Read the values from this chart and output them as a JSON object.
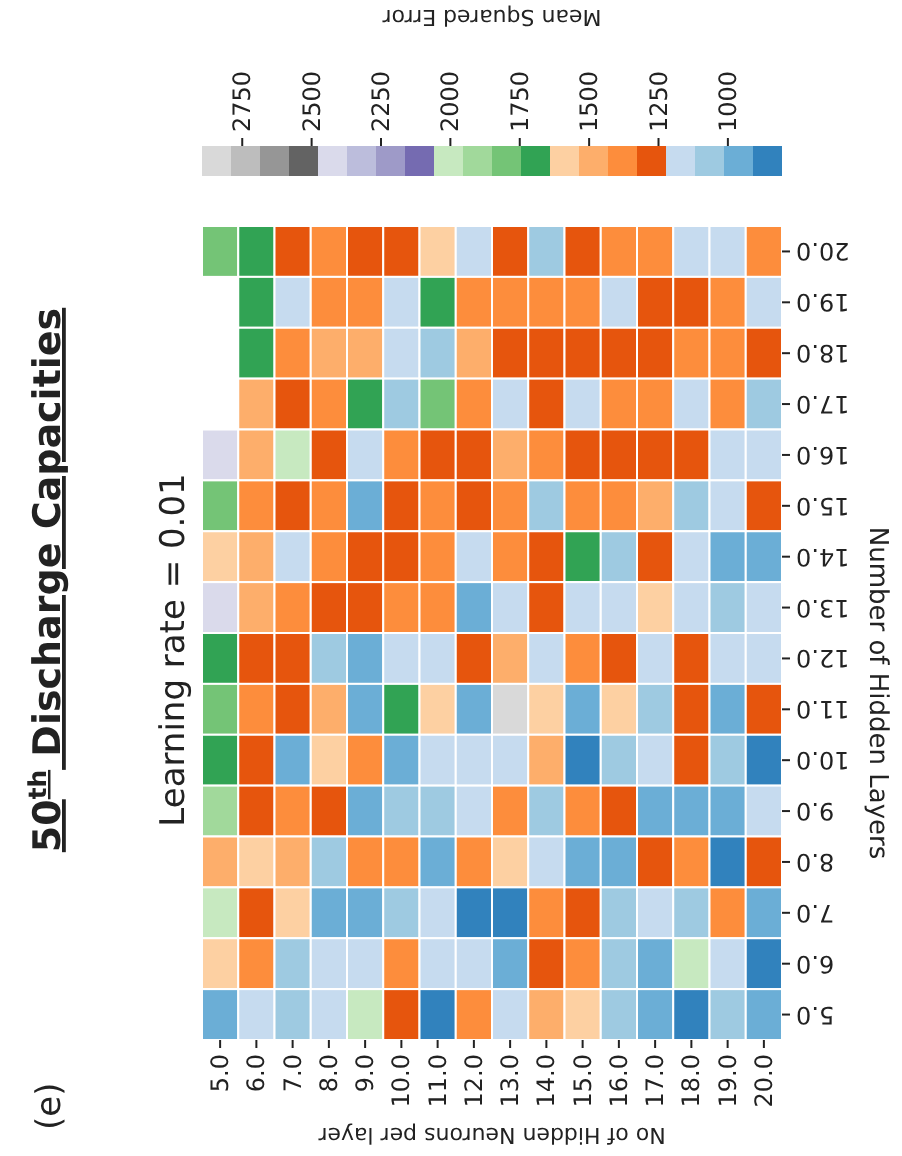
{
  "chart_data": {
    "type": "heatmap",
    "title": "50$^{th}$ Discharge Capacities",
    "subtitle": "Learning rate = 0.01",
    "xlabel": "No of Hidden Neurons per layer",
    "ylabel": "Number of Hidden Layers",
    "clabel": "Mean Squared Error",
    "annotations": [
      "(e)"
    ],
    "categories": [
      "5.0",
      "6.0",
      "7.0",
      "8.0",
      "9.0",
      "10.0",
      "11.0",
      "12.0",
      "13.0",
      "14.0",
      "15.0",
      "16.0",
      "17.0",
      "18.0",
      "19.0",
      "20.0"
    ],
    "y_categories": [
      "20.0",
      "19.0",
      "18.0",
      "17.0",
      "16.0",
      "15.0",
      "14.0",
      "13.0",
      "12.0",
      "11.0",
      "10.0",
      "9.0",
      "8.0",
      "7.0",
      "6.0",
      "5.0"
    ],
    "clim": [
      805,
      2895
    ],
    "cticks": [
      2750,
      2500,
      2250,
      2000,
      1750,
      1500,
      1250,
      1000
    ],
    "colors": [
      "#3182bd",
      "#6baed6",
      "#9ecae1",
      "#c6dbef",
      "#e6550d",
      "#fd8d3c",
      "#fdae6b",
      "#fdd0a2",
      "#31a354",
      "#74c476",
      "#a1d99b",
      "#c7e9c0",
      "#756bb1",
      "#9e9ac8",
      "#bcbddc",
      "#dadaeb",
      "#636363",
      "#969696",
      "#bdbdbd",
      "#d9d9d9"
    ],
    "cells": [
      [
        1800,
        1690,
        1280,
        1380,
        1280,
        1280,
        1590,
        1170,
        1280,
        1070,
        1280,
        1380,
        1380,
        1170,
        1170,
        1380
      ],
      [
        null,
        1690,
        1170,
        1380,
        1380,
        1170,
        1690,
        1380,
        1380,
        1380,
        1380,
        1170,
        1280,
        1280,
        1380,
        1170
      ],
      [
        null,
        1690,
        1380,
        1480,
        1480,
        1170,
        1070,
        1480,
        1280,
        1280,
        1280,
        1280,
        1280,
        1380,
        1380,
        1280
      ],
      [
        null,
        1480,
        1280,
        1380,
        1690,
        1070,
        1800,
        1380,
        1170,
        1280,
        1170,
        1380,
        1380,
        1170,
        1380,
        1070
      ],
      [
        2430,
        1480,
        2010,
        1280,
        1170,
        1380,
        1280,
        1280,
        1480,
        1380,
        1280,
        1280,
        1280,
        1280,
        1170,
        1170
      ],
      [
        1800,
        1380,
        1280,
        1380,
        960,
        1280,
        1380,
        1280,
        1380,
        1070,
        1380,
        1380,
        1480,
        1070,
        1170,
        1280
      ],
      [
        1590,
        1480,
        1170,
        1380,
        1280,
        1280,
        1380,
        1170,
        1380,
        1280,
        1690,
        1070,
        1280,
        1170,
        960,
        960
      ],
      [
        2430,
        1480,
        1380,
        1280,
        1280,
        1380,
        1380,
        960,
        1170,
        1280,
        1170,
        1170,
        1590,
        1170,
        1070,
        1170
      ],
      [
        1690,
        1280,
        1280,
        1070,
        960,
        1170,
        1170,
        1280,
        1480,
        1170,
        1380,
        1280,
        1170,
        1280,
        1170,
        1170
      ],
      [
        1800,
        1380,
        1280,
        1480,
        960,
        1690,
        1590,
        960,
        2840,
        1590,
        960,
        1590,
        1070,
        1280,
        960,
        1280
      ],
      [
        1690,
        1280,
        960,
        1590,
        1380,
        960,
        1170,
        1170,
        1170,
        1480,
        860,
        1070,
        1170,
        1280,
        1070,
        860
      ],
      [
        1900,
        1280,
        1380,
        1280,
        960,
        1070,
        1070,
        1170,
        1380,
        1070,
        1380,
        1280,
        960,
        960,
        960,
        1170
      ],
      [
        1480,
        1590,
        1480,
        1070,
        1380,
        1380,
        960,
        1380,
        1590,
        1170,
        960,
        960,
        1280,
        1380,
        860,
        1280
      ],
      [
        2010,
        1280,
        1590,
        960,
        960,
        1070,
        1170,
        860,
        860,
        1380,
        1280,
        1070,
        1170,
        1070,
        1380,
        960
      ],
      [
        1590,
        1380,
        1070,
        1170,
        1170,
        1380,
        1170,
        1170,
        960,
        1280,
        1380,
        1070,
        960,
        2010,
        1170,
        860
      ],
      [
        960,
        1170,
        1070,
        1170,
        2010,
        1280,
        860,
        1380,
        1170,
        1480,
        1590,
        1070,
        960,
        860,
        1070,
        960
      ]
    ]
  }
}
